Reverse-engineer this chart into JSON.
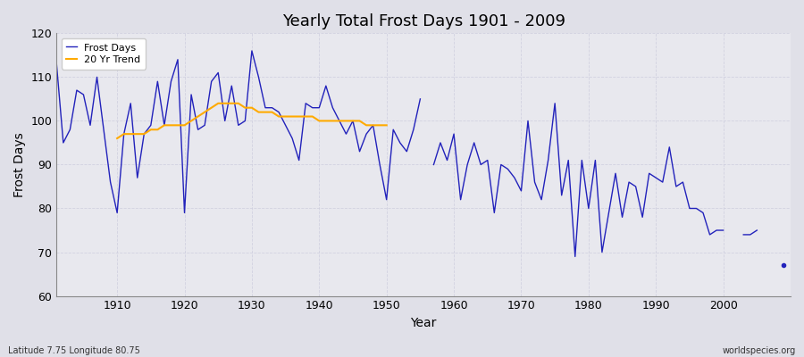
{
  "title": "Yearly Total Frost Days 1901 - 2009",
  "xlabel": "Year",
  "ylabel": "Frost Days",
  "footnote_left": "Latitude 7.75 Longitude 80.75",
  "footnote_right": "worldspecies.org",
  "ylim": [
    60,
    120
  ],
  "xlim": [
    1901,
    2010
  ],
  "frost_data": [
    [
      1901,
      113
    ],
    [
      1902,
      95
    ],
    [
      1903,
      98
    ],
    [
      1904,
      107
    ],
    [
      1905,
      106
    ],
    [
      1906,
      99
    ],
    [
      1907,
      110
    ],
    [
      1908,
      98
    ],
    [
      1909,
      86
    ],
    [
      1910,
      79
    ],
    [
      1911,
      97
    ],
    [
      1912,
      104
    ],
    [
      1913,
      87
    ],
    [
      1914,
      97
    ],
    [
      1915,
      99
    ],
    [
      1916,
      109
    ],
    [
      1917,
      99
    ],
    [
      1918,
      109
    ],
    [
      1919,
      114
    ],
    [
      1920,
      79
    ],
    [
      1921,
      106
    ],
    [
      1922,
      98
    ],
    [
      1923,
      99
    ],
    [
      1924,
      109
    ],
    [
      1925,
      111
    ],
    [
      1926,
      100
    ],
    [
      1927,
      108
    ],
    [
      1928,
      99
    ],
    [
      1929,
      100
    ],
    [
      1930,
      116
    ],
    [
      1931,
      110
    ],
    [
      1932,
      103
    ],
    [
      1933,
      103
    ],
    [
      1934,
      102
    ],
    [
      1935,
      99
    ],
    [
      1936,
      96
    ],
    [
      1937,
      91
    ],
    [
      1938,
      104
    ],
    [
      1939,
      103
    ],
    [
      1940,
      103
    ],
    [
      1941,
      108
    ],
    [
      1942,
      103
    ],
    [
      1943,
      100
    ],
    [
      1944,
      97
    ],
    [
      1945,
      100
    ],
    [
      1946,
      93
    ],
    [
      1947,
      97
    ],
    [
      1948,
      99
    ],
    [
      1949,
      90
    ],
    [
      1950,
      82
    ],
    [
      1951,
      98
    ],
    [
      1952,
      95
    ],
    [
      1953,
      93
    ],
    [
      1954,
      98
    ],
    [
      1955,
      105
    ],
    [
      1957,
      90
    ],
    [
      1958,
      95
    ],
    [
      1959,
      91
    ],
    [
      1960,
      97
    ],
    [
      1961,
      82
    ],
    [
      1962,
      90
    ],
    [
      1963,
      95
    ],
    [
      1964,
      90
    ],
    [
      1965,
      91
    ],
    [
      1966,
      79
    ],
    [
      1967,
      90
    ],
    [
      1968,
      89
    ],
    [
      1969,
      87
    ],
    [
      1970,
      84
    ],
    [
      1971,
      100
    ],
    [
      1972,
      86
    ],
    [
      1973,
      82
    ],
    [
      1974,
      91
    ],
    [
      1975,
      104
    ],
    [
      1976,
      83
    ],
    [
      1977,
      91
    ],
    [
      1978,
      69
    ],
    [
      1979,
      91
    ],
    [
      1980,
      80
    ],
    [
      1981,
      91
    ],
    [
      1982,
      70
    ],
    [
      1983,
      79
    ],
    [
      1984,
      88
    ],
    [
      1985,
      78
    ],
    [
      1986,
      86
    ],
    [
      1987,
      85
    ],
    [
      1988,
      78
    ],
    [
      1989,
      88
    ],
    [
      1990,
      87
    ],
    [
      1991,
      86
    ],
    [
      1992,
      94
    ],
    [
      1993,
      85
    ],
    [
      1994,
      86
    ],
    [
      1995,
      80
    ],
    [
      1996,
      80
    ],
    [
      1997,
      79
    ],
    [
      1998,
      74
    ],
    [
      1999,
      75
    ],
    [
      2000,
      75
    ],
    [
      2003,
      74
    ],
    [
      2004,
      74
    ],
    [
      2005,
      75
    ],
    [
      2009,
      67
    ]
  ],
  "trend_data": [
    [
      1910,
      96
    ],
    [
      1911,
      97
    ],
    [
      1912,
      97
    ],
    [
      1913,
      97
    ],
    [
      1914,
      97
    ],
    [
      1915,
      98
    ],
    [
      1916,
      98
    ],
    [
      1917,
      99
    ],
    [
      1918,
      99
    ],
    [
      1919,
      99
    ],
    [
      1920,
      99
    ],
    [
      1921,
      100
    ],
    [
      1922,
      101
    ],
    [
      1923,
      102
    ],
    [
      1924,
      103
    ],
    [
      1925,
      104
    ],
    [
      1926,
      104
    ],
    [
      1927,
      104
    ],
    [
      1928,
      104
    ],
    [
      1929,
      103
    ],
    [
      1930,
      103
    ],
    [
      1931,
      102
    ],
    [
      1932,
      102
    ],
    [
      1933,
      102
    ],
    [
      1934,
      101
    ],
    [
      1935,
      101
    ],
    [
      1936,
      101
    ],
    [
      1937,
      101
    ],
    [
      1938,
      101
    ],
    [
      1939,
      101
    ],
    [
      1940,
      100
    ],
    [
      1941,
      100
    ],
    [
      1942,
      100
    ],
    [
      1943,
      100
    ],
    [
      1944,
      100
    ],
    [
      1945,
      100
    ],
    [
      1946,
      100
    ],
    [
      1947,
      99
    ],
    [
      1948,
      99
    ],
    [
      1949,
      99
    ],
    [
      1950,
      99
    ]
  ],
  "line_color": "#2222bb",
  "trend_color": "#ffaa00",
  "bg_color": "#e8e8ee",
  "grid_color": "#ccccdd",
  "fig_color": "#e0e0e8"
}
